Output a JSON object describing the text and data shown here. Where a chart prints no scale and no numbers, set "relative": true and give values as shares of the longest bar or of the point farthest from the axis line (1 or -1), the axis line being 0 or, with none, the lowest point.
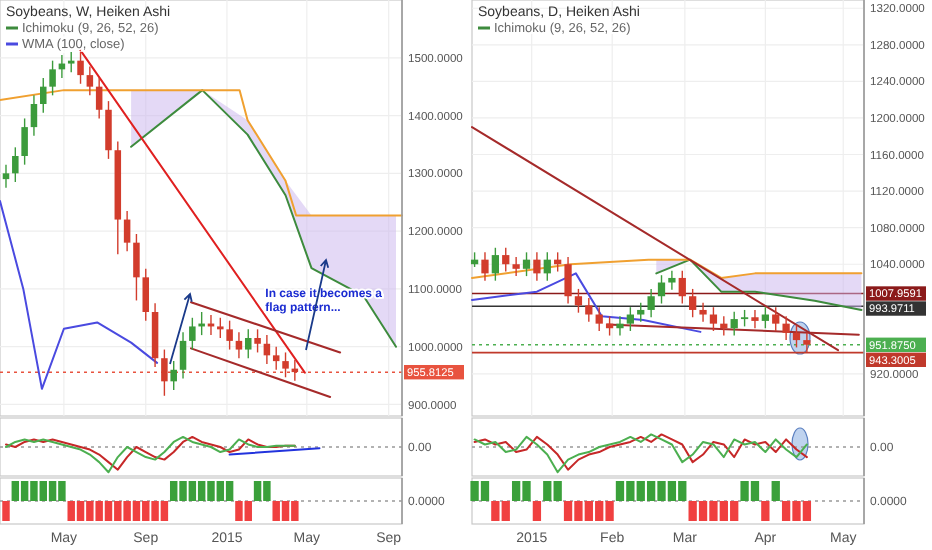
{
  "chart_data": [
    {
      "type": "candlestick",
      "title": "Soybeans, W, Heiken Ashi",
      "legend": "top left",
      "grid": true,
      "tick_labels": "y",
      "xticks": [
        {
          "value": "2014-05-01",
          "label": null
        },
        {
          "value": "2014-09-01",
          "label": null
        },
        {
          "value": "2015-01-01",
          "label": null
        },
        {
          "value": "2015-05-01",
          "label": null
        },
        {
          "value": "2015-09-01",
          "label": null
        }
      ],
      "x": [
        "2014-02-03",
        "2014-02-17",
        "2014-03-03",
        "2014-03-17",
        "2014-03-31",
        "2014-04-14",
        "2014-04-28",
        "2014-05-12",
        "2014-05-26",
        "2014-06-09",
        "2014-06-23",
        "2014-07-07",
        "2014-07-21",
        "2014-08-04",
        "2014-08-18",
        "2014-09-01",
        "2014-09-15",
        "2014-09-29",
        "2014-10-13",
        "2014-10-27",
        "2014-11-10",
        "2014-11-24",
        "2014-12-08",
        "2014-12-22",
        "2015-01-05",
        "2015-01-19",
        "2015-02-02",
        "2015-02-16",
        "2015-03-02",
        "2015-03-16",
        "2015-03-30",
        "2015-04-13"
      ],
      "ohlc": [
        [
          1290,
          1315,
          1275,
          1300
        ],
        [
          1300,
          1345,
          1285,
          1330
        ],
        [
          1330,
          1395,
          1315,
          1380
        ],
        [
          1380,
          1435,
          1365,
          1420
        ],
        [
          1420,
          1465,
          1405,
          1450
        ],
        [
          1450,
          1495,
          1435,
          1480
        ],
        [
          1480,
          1505,
          1465,
          1490
        ],
        [
          1490,
          1510,
          1475,
          1495
        ],
        [
          1495,
          1510,
          1455,
          1470
        ],
        [
          1470,
          1485,
          1435,
          1450
        ],
        [
          1450,
          1465,
          1395,
          1410
        ],
        [
          1410,
          1425,
          1325,
          1340
        ],
        [
          1340,
          1355,
          1160,
          1220
        ],
        [
          1220,
          1235,
          1165,
          1180
        ],
        [
          1180,
          1195,
          1080,
          1120
        ],
        [
          1120,
          1135,
          1045,
          1060
        ],
        [
          1060,
          1075,
          965,
          980
        ],
        [
          980,
          995,
          915,
          940
        ],
        [
          940,
          975,
          925,
          960
        ],
        [
          960,
          1025,
          945,
          1010
        ],
        [
          1010,
          1050,
          995,
          1035
        ],
        [
          1035,
          1060,
          1020,
          1040
        ],
        [
          1040,
          1055,
          1020,
          1035
        ],
        [
          1035,
          1050,
          1015,
          1030
        ],
        [
          1030,
          1045,
          995,
          1010
        ],
        [
          1010,
          1025,
          980,
          995
        ],
        [
          995,
          1030,
          980,
          1015
        ],
        [
          1015,
          1030,
          990,
          1005
        ],
        [
          1005,
          1020,
          970,
          985
        ],
        [
          985,
          1000,
          960,
          975
        ],
        [
          975,
          990,
          947,
          962
        ],
        [
          962,
          977,
          941,
          956
        ]
      ],
      "series": [
        {
          "name": "Ichimoku (9, 26, 52, 26)",
          "type": "line",
          "color": "#3d8b3d",
          "x": [
            "2014-08-10",
            "2014-11-25",
            "2015-02-01",
            "2015-03-30",
            "2015-05-08",
            "2015-07-25",
            "2015-09-12"
          ],
          "values": [
            1346,
            1444,
            1367,
            1262,
            1136,
            1088,
            1000
          ],
          "lower": [
            1346,
            1444,
            1367,
            1262,
            1136,
            1088,
            1000
          ],
          "upper": [
            1444,
            1444,
            1392,
            1287,
            1227,
            1227,
            1227
          ]
        },
        {
          "type": "line",
          "color": "#f0a030",
          "x": [
            "2014-01-25",
            "2014-05-01",
            "2015-01-20",
            "2015-02-01",
            "2015-03-30",
            "2015-04-15",
            "2015-09-21"
          ],
          "values": [
            1427,
            1444,
            1444,
            1392,
            1287,
            1227,
            1227
          ]
        },
        {
          "name": "WMA (100, close)",
          "type": "line",
          "color": "#4a4ae0",
          "x": [
            "2014-01-25",
            "2014-03-01",
            "2014-03-29",
            "2014-05-01",
            "2014-06-20",
            "2014-08-10",
            "2014-09-18"
          ],
          "values": [
            1252,
            1100,
            927,
            1031,
            1042,
            1007,
            972
          ]
        },
        {
          "type": "line",
          "color": "#e02020",
          "x": [
            "2014-05-15",
            "2015-04-28"
          ],
          "values": [
            1531,
            955
          ]
        },
        {
          "type": "line",
          "color": "#a52a2a",
          "x": [
            "2014-11-08",
            "2015-06-20"
          ],
          "values": [
            1077,
            990
          ]
        },
        {
          "type": "line",
          "color": "#a52a2a",
          "x": [
            "2014-11-08",
            "2015-06-05"
          ],
          "values": [
            997,
            913
          ]
        }
      ],
      "xlim": [
        "2014-01-25",
        "2015-09-21"
      ],
      "ylim": [
        880,
        1600
      ],
      "yticks": [
        {
          "value": 900,
          "label": "900.0000"
        },
        {
          "value": 1000,
          "label": "1000.0000"
        },
        {
          "value": 1100,
          "label": "1100.0000"
        },
        {
          "value": 1200,
          "label": "1200.0000"
        },
        {
          "value": 1300,
          "label": "1300.0000"
        },
        {
          "value": 1400,
          "label": "1400.0000"
        },
        {
          "value": 1500,
          "label": "1500.0000"
        }
      ],
      "ref_lines": [
        {
          "axis": "y",
          "value": 955.8125,
          "label": "955.8125",
          "color": "#e8533f",
          "line_style": "dotted"
        }
      ],
      "annotations": [
        "In case it becomes a flag pattern..."
      ]
    },
    {
      "type": "line",
      "relative": true,
      "tick_labels": false,
      "x": [
        "2014-02-03",
        "2014-02-17",
        "2014-03-03",
        "2014-03-17",
        "2014-03-31",
        "2014-04-14",
        "2014-04-28",
        "2014-05-12",
        "2014-05-26",
        "2014-06-09",
        "2014-06-23",
        "2014-07-07",
        "2014-07-21",
        "2014-08-04",
        "2014-08-18",
        "2014-09-01",
        "2014-09-15",
        "2014-09-29",
        "2014-10-13",
        "2014-10-27",
        "2014-11-10",
        "2014-11-24",
        "2014-12-08",
        "2014-12-22",
        "2015-01-05",
        "2015-01-19",
        "2015-02-02",
        "2015-02-16",
        "2015-03-02",
        "2015-03-16",
        "2015-03-30",
        "2015-04-13"
      ],
      "series": [
        {
          "color": "#c62828",
          "values": [
            0.1,
            0,
            0.2,
            0.3,
            0.2,
            0.3,
            0.2,
            0.1,
            0,
            -0.1,
            -0.3,
            -0.6,
            -0.9,
            -0.4,
            0,
            -0.2,
            -0.4,
            -0.5,
            -0.2,
            0.2,
            0.4,
            0.2,
            0.1,
            0,
            -0.2,
            -0.1,
            0.3,
            0.1,
            0,
            0,
            0.05,
            0.05
          ]
        },
        {
          "color": "#4caf50",
          "values": [
            0,
            0.2,
            0.3,
            0.2,
            0.3,
            0.2,
            0.1,
            0,
            -0.1,
            -0.3,
            -0.6,
            -1,
            -0.4,
            0,
            -0.2,
            -0.4,
            -0.5,
            -0.2,
            0.2,
            0.4,
            0.2,
            0.1,
            0,
            -0.2,
            -0.1,
            0.3,
            0.1,
            0,
            0,
            0.05,
            0.05,
            0.05
          ]
        },
        {
          "color": "#2233dd",
          "x": [
            "2015-01-05",
            "2015-05-20"
          ],
          "values": [
            -0.3,
            -0.05
          ]
        }
      ],
      "xlim": [
        "2014-01-25",
        "2015-09-21"
      ],
      "ref_lines": [
        {
          "axis": "y",
          "value": 0,
          "label": "0.00",
          "line_style": "dotted"
        }
      ]
    },
    {
      "type": "bar",
      "relative": true,
      "tick_labels": "x",
      "x": [
        "2014-02-03",
        "2014-02-17",
        "2014-03-03",
        "2014-03-17",
        "2014-03-31",
        "2014-04-14",
        "2014-04-28",
        "2014-05-12",
        "2014-05-26",
        "2014-06-09",
        "2014-06-23",
        "2014-07-07",
        "2014-07-21",
        "2014-08-04",
        "2014-08-18",
        "2014-09-01",
        "2014-09-15",
        "2014-09-29",
        "2014-10-13",
        "2014-10-27",
        "2014-11-10",
        "2014-11-24",
        "2014-12-08",
        "2014-12-22",
        "2015-01-05",
        "2015-01-19",
        "2015-02-02",
        "2015-02-16",
        "2015-03-02",
        "2015-03-16",
        "2015-03-30",
        "2015-04-13"
      ],
      "values": [
        -1,
        1,
        1,
        1,
        1,
        1,
        1,
        -1,
        -1,
        -1,
        -1,
        -1,
        -1,
        -1,
        -1,
        -1,
        -1,
        -1,
        1,
        1,
        1,
        1,
        1,
        1,
        1,
        -1,
        -1,
        1,
        1,
        -1,
        -1,
        -1
      ],
      "colors": [
        "#f04040",
        "#3aa03a",
        "#3aa03a",
        "#3aa03a",
        "#3aa03a",
        "#3aa03a",
        "#3aa03a",
        "#f04040",
        "#f04040",
        "#f04040",
        "#f04040",
        "#f04040",
        "#f04040",
        "#f04040",
        "#f04040",
        "#f04040",
        "#f04040",
        "#f04040",
        "#3aa03a",
        "#3aa03a",
        "#3aa03a",
        "#3aa03a",
        "#3aa03a",
        "#3aa03a",
        "#3aa03a",
        "#f04040",
        "#f04040",
        "#3aa03a",
        "#3aa03a",
        "#f04040",
        "#f04040",
        "#f04040"
      ],
      "xlim": [
        "2014-01-25",
        "2015-09-21"
      ],
      "xticks": [
        {
          "value": "2014-05-01",
          "label": "May"
        },
        {
          "value": "2014-09-01",
          "label": "Sep"
        },
        {
          "value": "2015-01-01",
          "label": "2015"
        },
        {
          "value": "2015-05-01",
          "label": "May"
        },
        {
          "value": "2015-09-01",
          "label": "Sep"
        }
      ],
      "ref_lines": [
        {
          "axis": "y",
          "value": 0,
          "label": "0.0000",
          "line_style": "dotted"
        }
      ]
    },
    {
      "type": "candlestick",
      "title": "Soybeans, D, Heiken Ashi",
      "legend": "top left",
      "grid": true,
      "tick_labels": "y",
      "xticks": [
        {
          "value": "2015-01-01",
          "label": null
        },
        {
          "value": "2015-02-01",
          "label": null
        },
        {
          "value": "2015-03-01",
          "label": null
        },
        {
          "value": "2015-04-01",
          "label": null
        },
        {
          "value": "2015-05-01",
          "label": null
        }
      ],
      "x": [
        "2014-12-10",
        "2014-12-14",
        "2014-12-18",
        "2014-12-22",
        "2014-12-26",
        "2014-12-30",
        "2015-01-03",
        "2015-01-07",
        "2015-01-11",
        "2015-01-15",
        "2015-01-19",
        "2015-01-23",
        "2015-01-27",
        "2015-01-31",
        "2015-02-04",
        "2015-02-08",
        "2015-02-12",
        "2015-02-16",
        "2015-02-20",
        "2015-02-24",
        "2015-02-28",
        "2015-03-04",
        "2015-03-08",
        "2015-03-12",
        "2015-03-16",
        "2015-03-20",
        "2015-03-24",
        "2015-03-28",
        "2015-04-01",
        "2015-04-05",
        "2015-04-09",
        "2015-04-13",
        "2015-04-17"
      ],
      "ohlc": [
        [
          1040,
          1053,
          1037,
          1045
        ],
        [
          1045,
          1053,
          1022,
          1030
        ],
        [
          1030,
          1058,
          1022,
          1050
        ],
        [
          1050,
          1058,
          1032,
          1040
        ],
        [
          1040,
          1048,
          1027,
          1035
        ],
        [
          1035,
          1053,
          1027,
          1045
        ],
        [
          1045,
          1053,
          1022,
          1030
        ],
        [
          1030,
          1053,
          1022,
          1045
        ],
        [
          1045,
          1053,
          1032,
          1040
        ],
        [
          1040,
          1048,
          997,
          1005
        ],
        [
          1005,
          1013,
          987,
          995
        ],
        [
          995,
          1003,
          977,
          985
        ],
        [
          985,
          993,
          967,
          975
        ],
        [
          975,
          983,
          962,
          970
        ],
        [
          970,
          983,
          962,
          975
        ],
        [
          975,
          993,
          967,
          985
        ],
        [
          985,
          998,
          977,
          990
        ],
        [
          990,
          1013,
          982,
          1005
        ],
        [
          1005,
          1028,
          997,
          1020
        ],
        [
          1020,
          1033,
          1012,
          1025
        ],
        [
          1025,
          1033,
          997,
          1005
        ],
        [
          1005,
          1013,
          982,
          990
        ],
        [
          990,
          998,
          977,
          985
        ],
        [
          985,
          993,
          967,
          975
        ],
        [
          975,
          983,
          962,
          970
        ],
        [
          970,
          988,
          962,
          980
        ],
        [
          980,
          990,
          972,
          982
        ],
        [
          982,
          990,
          970,
          978
        ],
        [
          978,
          993,
          970,
          985
        ],
        [
          985,
          993,
          967,
          975
        ],
        [
          975,
          983,
          957,
          965
        ],
        [
          965,
          973,
          949,
          957
        ],
        [
          957,
          965,
          944,
          952
        ]
      ],
      "series": [
        {
          "name": "Ichimoku (9, 26, 52, 26)",
          "type": "line",
          "color": "#3d8b3d",
          "x": [
            "2015-02-18",
            "2015-03-03",
            "2015-03-15",
            "2015-03-28",
            "2015-04-20",
            "2015-05-08"
          ],
          "values": [
            1030,
            1045,
            1010,
            1010,
            1000,
            990
          ],
          "lower": [
            1030,
            1045,
            1010,
            1010,
            1000,
            990
          ],
          "upper": [
            1045,
            1045,
            1025,
            1030,
            1030,
            1030
          ]
        },
        {
          "type": "line",
          "color": "#f0a030",
          "x": [
            "2014-12-09",
            "2015-01-16",
            "2015-02-15",
            "2015-03-03",
            "2015-03-15",
            "2015-03-28",
            "2015-05-08"
          ],
          "values": [
            1025,
            1040,
            1045,
            1045,
            1025,
            1030,
            1030
          ]
        },
        {
          "type": "line",
          "color": "#4a4ae0",
          "x": [
            "2014-12-09",
            "2015-01-03",
            "2015-01-18",
            "2015-01-28",
            "2015-02-13",
            "2015-03-07"
          ],
          "values": [
            1001,
            1010,
            1030,
            983,
            979,
            966
          ]
        },
        {
          "type": "line",
          "color": "#a52a2a",
          "x": [
            "2014-12-09",
            "2015-04-29"
          ],
          "values": [
            1190,
            946
          ]
        },
        {
          "type": "line",
          "color": "#a52a2a",
          "x": [
            "2015-01-30",
            "2015-05-07"
          ],
          "values": [
            974,
            963
          ]
        }
      ],
      "xlim": [
        "2014-12-09",
        "2015-05-09"
      ],
      "ylim": [
        874,
        1329
      ],
      "yticks": [
        {
          "value": 920,
          "label": "920.0000"
        },
        {
          "value": 1040,
          "label": "1040.0000"
        },
        {
          "value": 1080,
          "label": "1080.0000"
        },
        {
          "value": 1120,
          "label": "1120.0000"
        },
        {
          "value": 1160,
          "label": "1160.0000"
        },
        {
          "value": 1200,
          "label": "1200.0000"
        },
        {
          "value": 1240,
          "label": "1240.0000"
        },
        {
          "value": 1280,
          "label": "1280.0000"
        },
        {
          "value": 1320,
          "label": "1320.0000"
        }
      ],
      "ref_lines": [
        {
          "axis": "y",
          "value": 1007.9591,
          "label": "1007.9591",
          "color": "#8b1a1a"
        },
        {
          "axis": "y",
          "value": 993.9711,
          "label": "993.9711",
          "color": "#333333"
        },
        {
          "axis": "y",
          "value": 951.875,
          "label": "951.8750",
          "color": "#4caf50",
          "line_style": "dotted"
        },
        {
          "axis": "y",
          "value": 943.3005,
          "label": "943.3005",
          "color": "#c0392b"
        }
      ]
    },
    {
      "type": "line",
      "relative": true,
      "tick_labels": false,
      "x": [
        "2014-12-10",
        "2014-12-14",
        "2014-12-18",
        "2014-12-22",
        "2014-12-26",
        "2014-12-30",
        "2015-01-03",
        "2015-01-07",
        "2015-01-11",
        "2015-01-15",
        "2015-01-19",
        "2015-01-23",
        "2015-01-27",
        "2015-01-31",
        "2015-02-04",
        "2015-02-08",
        "2015-02-12",
        "2015-02-16",
        "2015-02-20",
        "2015-02-24",
        "2015-02-28",
        "2015-03-04",
        "2015-03-08",
        "2015-03-12",
        "2015-03-16",
        "2015-03-20",
        "2015-03-24",
        "2015-03-28",
        "2015-04-01",
        "2015-04-05",
        "2015-04-09",
        "2015-04-13",
        "2015-04-17"
      ],
      "series": [
        {
          "color": "#c62828",
          "values": [
            0.2,
            0.3,
            0.1,
            0.2,
            -0.2,
            -0.1,
            0.4,
            0.1,
            -0.3,
            -0.9,
            -0.5,
            -0.3,
            -0.2,
            0,
            0.1,
            0.2,
            0.4,
            0.2,
            0.5,
            0.3,
            0.1,
            -0.6,
            -0.3,
            0.2,
            0.1,
            -0.4,
            0.3,
            0.1,
            0.2,
            -0.2,
            0.3,
            -0.1,
            -0.4
          ]
        },
        {
          "color": "#4caf50",
          "values": [
            0.3,
            0.1,
            0.2,
            -0.2,
            -0.1,
            0.4,
            0.1,
            -0.3,
            -1,
            -0.5,
            -0.3,
            -0.2,
            0,
            0.1,
            0.2,
            0.4,
            0.2,
            0.5,
            0.3,
            0.1,
            -0.6,
            -0.3,
            0.2,
            0.1,
            -0.4,
            0.3,
            0.1,
            0.2,
            -0.2,
            0.3,
            -0.1,
            -0.4,
            0.1
          ]
        }
      ],
      "xlim": [
        "2014-12-09",
        "2015-05-09"
      ],
      "ref_lines": [
        {
          "axis": "y",
          "value": 0,
          "label": "0.00",
          "line_style": "dotted"
        }
      ]
    },
    {
      "type": "bar",
      "relative": true,
      "tick_labels": "x",
      "x": [
        "2014-12-10",
        "2014-12-14",
        "2014-12-18",
        "2014-12-22",
        "2014-12-26",
        "2014-12-30",
        "2015-01-03",
        "2015-01-07",
        "2015-01-11",
        "2015-01-15",
        "2015-01-19",
        "2015-01-23",
        "2015-01-27",
        "2015-01-31",
        "2015-02-04",
        "2015-02-08",
        "2015-02-12",
        "2015-02-16",
        "2015-02-20",
        "2015-02-24",
        "2015-02-28",
        "2015-03-04",
        "2015-03-08",
        "2015-03-12",
        "2015-03-16",
        "2015-03-20",
        "2015-03-24",
        "2015-03-28",
        "2015-04-01",
        "2015-04-05",
        "2015-04-09",
        "2015-04-13",
        "2015-04-17"
      ],
      "values": [
        1,
        1,
        -1,
        -1,
        1,
        1,
        -1,
        1,
        1,
        -1,
        -1,
        -1,
        -1,
        -1,
        1,
        1,
        1,
        1,
        1,
        1,
        1,
        -1,
        -1,
        -1,
        -1,
        -1,
        1,
        1,
        -1,
        1,
        -1,
        -1,
        -1
      ],
      "colors": [
        "#3aa03a",
        "#3aa03a",
        "#f04040",
        "#f04040",
        "#3aa03a",
        "#3aa03a",
        "#f04040",
        "#3aa03a",
        "#3aa03a",
        "#f04040",
        "#f04040",
        "#f04040",
        "#f04040",
        "#f04040",
        "#3aa03a",
        "#3aa03a",
        "#3aa03a",
        "#3aa03a",
        "#3aa03a",
        "#3aa03a",
        "#3aa03a",
        "#f04040",
        "#f04040",
        "#f04040",
        "#f04040",
        "#f04040",
        "#3aa03a",
        "#3aa03a",
        "#f04040",
        "#3aa03a",
        "#f04040",
        "#f04040",
        "#f04040"
      ],
      "xlim": [
        "2014-12-09",
        "2015-05-09"
      ],
      "xticks": [
        {
          "value": "2015-01-01",
          "label": "2015"
        },
        {
          "value": "2015-02-01",
          "label": "Feb"
        },
        {
          "value": "2015-03-01",
          "label": "Mar"
        },
        {
          "value": "2015-04-01",
          "label": "Apr"
        },
        {
          "value": "2015-05-01",
          "label": "May"
        }
      ],
      "ref_lines": [
        {
          "axis": "y",
          "value": 0,
          "label": "0.0000",
          "line_style": "dotted"
        }
      ]
    }
  ]
}
